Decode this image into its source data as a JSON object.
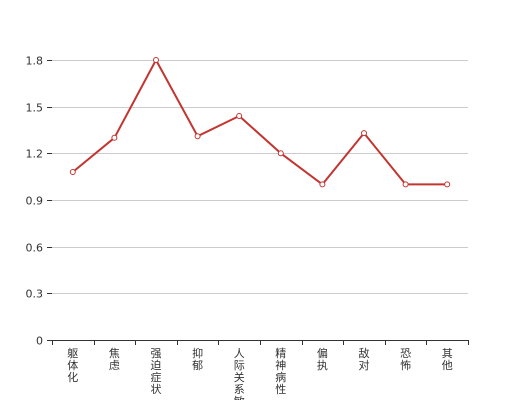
{
  "chart_data": {
    "type": "line",
    "title": "",
    "xlabel": "",
    "ylabel": "",
    "categories": [
      "躯体化",
      "焦虑",
      "强迫症状",
      "抑郁",
      "人际关系敏感",
      "精神病性",
      "偏执",
      "敌对",
      "恐怖",
      "其他"
    ],
    "series": [
      {
        "name": "",
        "values": [
          1.08,
          1.3,
          1.8,
          1.31,
          1.44,
          1.2,
          1.0,
          1.33,
          1.0,
          1.0
        ]
      }
    ],
    "ylim": [
      0,
      1.8
    ],
    "yticks": [
      "0",
      "0.3",
      "0.6",
      "0.9",
      "1.2",
      "1.5",
      "1.8"
    ],
    "grid": true,
    "legend": "none",
    "colors": {
      "line": "#c23531",
      "grid": "#cccccc",
      "axis": "#333333",
      "text": "#333333",
      "marker_fill": "#ffffff"
    }
  }
}
